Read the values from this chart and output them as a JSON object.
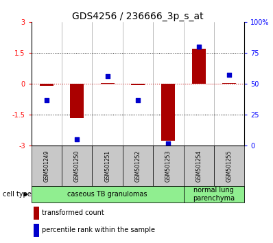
{
  "title": "GDS4256 / 236666_3p_s_at",
  "samples": [
    "GSM501249",
    "GSM501250",
    "GSM501251",
    "GSM501252",
    "GSM501253",
    "GSM501254",
    "GSM501255"
  ],
  "transformed_count": [
    -0.08,
    -1.65,
    0.05,
    -0.05,
    -2.75,
    1.7,
    0.05
  ],
  "percentile_rank": [
    37,
    5,
    56,
    37,
    2,
    80,
    57
  ],
  "bar_color": "#aa0000",
  "dot_color": "#0000cc",
  "zero_line_color": "#cc2222",
  "hline_color": "#000000",
  "sample_box_color": "#c8c8c8",
  "group1_label": "caseous TB granulomas",
  "group2_label": "normal lung\nparenchyma",
  "group_color": "#90ee90",
  "cell_type_label": "cell type",
  "legend_bar_label": "transformed count",
  "legend_dot_label": "percentile rank within the sample",
  "title_fontsize": 10,
  "ytick_left_fontsize": 7,
  "ytick_right_fontsize": 7,
  "sample_fontsize": 5.5,
  "group_fontsize": 7,
  "legend_fontsize": 7,
  "cell_type_fontsize": 7
}
